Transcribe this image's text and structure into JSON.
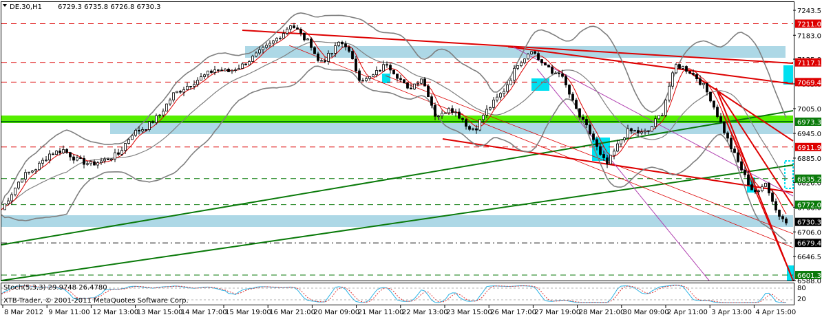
{
  "header": {
    "symbol_title": "DE.30,H1",
    "ohlc": "6729.3 6735.8 6726.8 6730.3"
  },
  "indicator": {
    "title": "Stoch(5,3,3)",
    "values": "29.9748 26.4780",
    "levels": [
      "80",
      "20"
    ],
    "colors": {
      "main": "#2ab3e5",
      "signal": "#e03030"
    }
  },
  "copyright": "XTB-Trader, © 2001-2011 MetaQuotes Software Corp.",
  "colors": {
    "candle": "#000000",
    "bollinger": "#7f7f7f",
    "ma": "#dd0000",
    "green_line": "#0a7a0a",
    "red_line": "#dd0000",
    "zone": "#add8e6",
    "highlight": "#00e0f0",
    "green_band": "#55ee00"
  },
  "chart_data": {
    "type": "candlestick",
    "x_ticks": [
      "8 Mar 2012",
      "9 Mar 11:00",
      "12 Mar 13:00",
      "13 Mar 15:00",
      "14 Mar 17:00",
      "15 Mar 19:00",
      "16 Mar 21:00",
      "20 Mar 09:00",
      "21 Mar 11:00",
      "22 Mar 13:00",
      "23 Mar 15:00",
      "26 Mar 17:00",
      "27 Mar 19:00",
      "28 Mar 21:00",
      "30 Mar 09:00",
      "2 Apr 11:00",
      "3 Apr 13:00",
      "4 Apr 15:00"
    ],
    "y_ticks": [
      7243.5,
      7183.0,
      7125.0,
      7065.0,
      7005.0,
      6945.0,
      6885.0,
      6826.0,
      6766.0,
      6706.0,
      6646.5,
      6588.0
    ],
    "ylim": [
      6588.0,
      7263.5
    ],
    "price_levels": [
      {
        "label": "7211.0",
        "value": 7211.0,
        "style": "red-dash"
      },
      {
        "label": "7117.1",
        "value": 7117.1,
        "style": "red-dash"
      },
      {
        "label": "7069.4",
        "value": 7069.4,
        "style": "red-dash"
      },
      {
        "label": "6973.3",
        "value": 6973.3,
        "style": "green"
      },
      {
        "label": "6911.9",
        "value": 6911.9,
        "style": "red-dash"
      },
      {
        "label": "6835.2",
        "value": 6835.2,
        "style": "green-dash"
      },
      {
        "label": "6772.0",
        "value": 6772.0,
        "style": "green-dash"
      },
      {
        "label": "6730.3",
        "value": 6730.3,
        "style": "current"
      },
      {
        "label": "6679.4",
        "value": 6679.4,
        "style": "black-dash"
      },
      {
        "label": "6601.3",
        "value": 6601.3,
        "style": "green-dash"
      }
    ],
    "close_path": [
      [
        0,
        6760
      ],
      [
        3,
        6800
      ],
      [
        6,
        6840
      ],
      [
        10,
        6860
      ],
      [
        14,
        6895
      ],
      [
        18,
        6905
      ],
      [
        22,
        6880
      ],
      [
        26,
        6870
      ],
      [
        30,
        6880
      ],
      [
        34,
        6895
      ],
      [
        38,
        6945
      ],
      [
        42,
        6960
      ],
      [
        46,
        6990
      ],
      [
        50,
        7040
      ],
      [
        54,
        7060
      ],
      [
        58,
        7080
      ],
      [
        62,
        7100
      ],
      [
        66,
        7095
      ],
      [
        70,
        7110
      ],
      [
        74,
        7135
      ],
      [
        78,
        7160
      ],
      [
        82,
        7190
      ],
      [
        84,
        7210
      ],
      [
        86,
        7195
      ],
      [
        88,
        7175
      ],
      [
        90,
        7160
      ],
      [
        92,
        7120
      ],
      [
        94,
        7125
      ],
      [
        96,
        7140
      ],
      [
        98,
        7165
      ],
      [
        100,
        7160
      ],
      [
        102,
        7120
      ],
      [
        104,
        7080
      ],
      [
        106,
        7075
      ],
      [
        108,
        7085
      ],
      [
        110,
        7100
      ],
      [
        112,
        7115
      ],
      [
        114,
        7095
      ],
      [
        116,
        7075
      ],
      [
        118,
        7050
      ],
      [
        120,
        7065
      ],
      [
        122,
        7080
      ],
      [
        124,
        7040
      ],
      [
        126,
        6990
      ],
      [
        128,
        6990
      ],
      [
        130,
        7010
      ],
      [
        132,
        6995
      ],
      [
        134,
        6980
      ],
      [
        136,
        6955
      ],
      [
        138,
        6960
      ],
      [
        140,
        6990
      ],
      [
        142,
        7010
      ],
      [
        144,
        7030
      ],
      [
        146,
        7050
      ],
      [
        148,
        7080
      ],
      [
        150,
        7115
      ],
      [
        152,
        7130
      ],
      [
        154,
        7150
      ],
      [
        156,
        7125
      ],
      [
        158,
        7110
      ],
      [
        160,
        7090
      ],
      [
        162,
        7095
      ],
      [
        164,
        7060
      ],
      [
        166,
        7020
      ],
      [
        168,
        6985
      ],
      [
        170,
        6960
      ],
      [
        172,
        6930
      ],
      [
        174,
        6890
      ],
      [
        176,
        6870
      ],
      [
        178,
        6900
      ],
      [
        180,
        6930
      ],
      [
        182,
        6950
      ],
      [
        184,
        6950
      ],
      [
        186,
        6945
      ],
      [
        188,
        6950
      ],
      [
        190,
        6975
      ],
      [
        192,
        6995
      ],
      [
        194,
        7060
      ],
      [
        196,
        7110
      ],
      [
        198,
        7105
      ],
      [
        200,
        7095
      ],
      [
        202,
        7080
      ],
      [
        204,
        7060
      ],
      [
        206,
        7030
      ],
      [
        208,
        6990
      ],
      [
        210,
        6950
      ],
      [
        212,
        6910
      ],
      [
        214,
        6875
      ],
      [
        216,
        6840
      ],
      [
        218,
        6810
      ],
      [
        220,
        6800
      ],
      [
        222,
        6830
      ],
      [
        224,
        6780
      ],
      [
        226,
        6745
      ],
      [
        228,
        6730
      ]
    ],
    "x_max": 230,
    "stoch_ylim": [
      0,
      100
    ]
  }
}
